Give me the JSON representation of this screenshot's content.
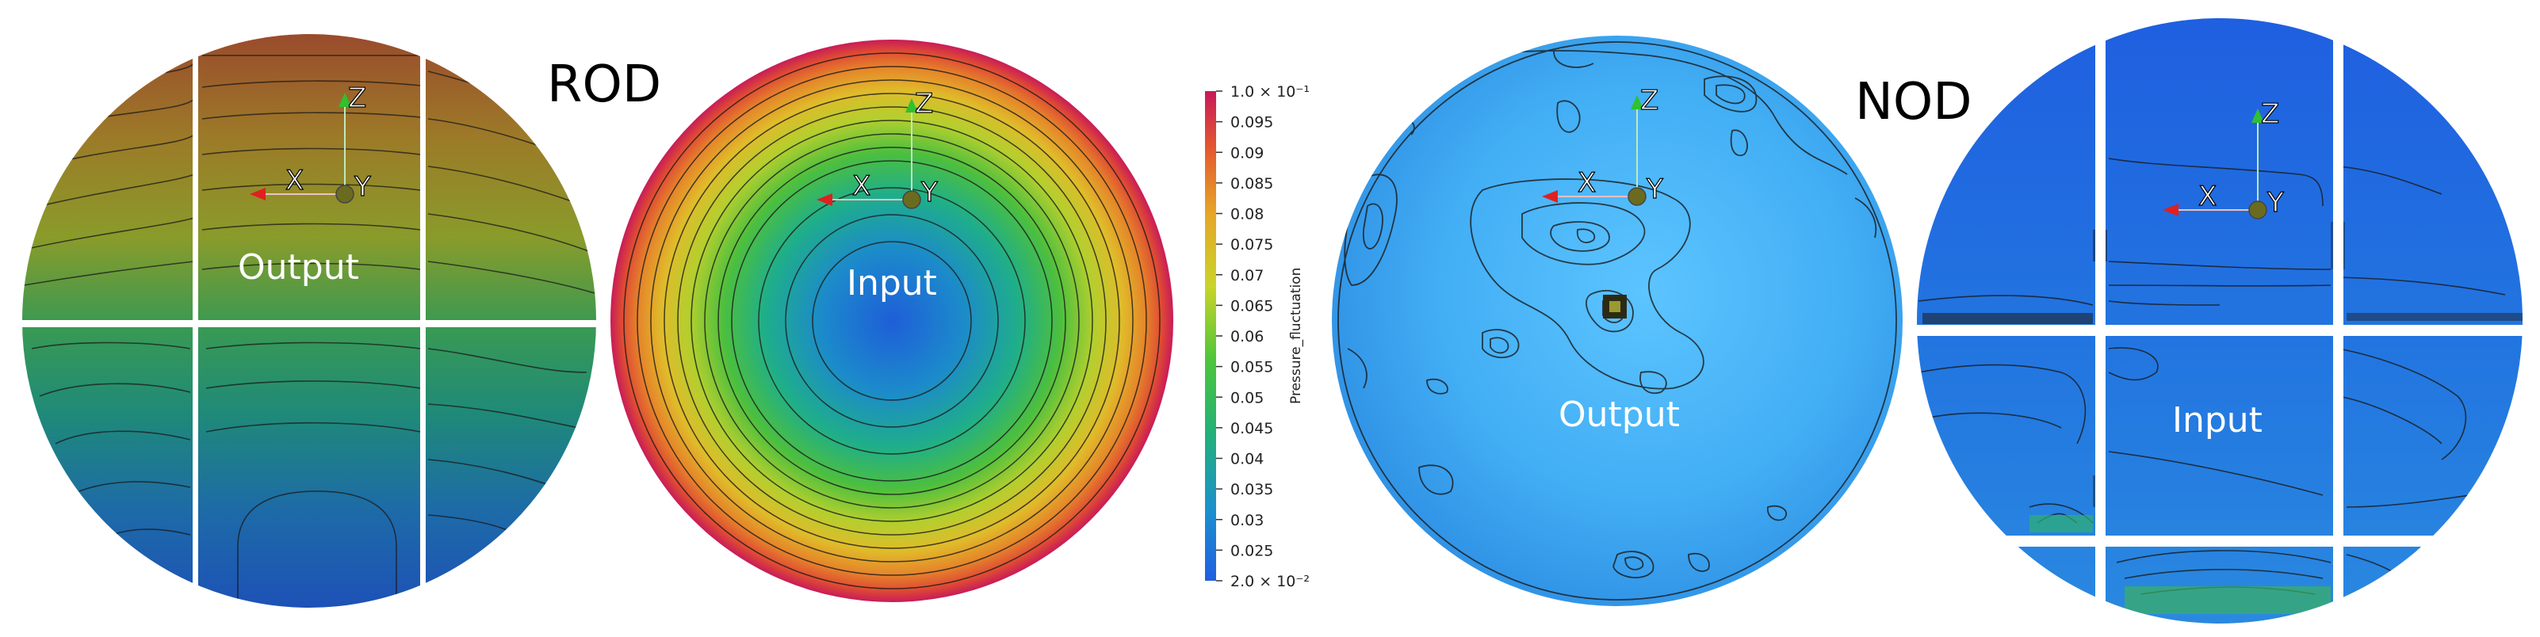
{
  "rod": {
    "title": "ROD",
    "output_label": "Output",
    "input_label": "Input"
  },
  "nod": {
    "title": "NOD",
    "output_label": "Output",
    "input_label": "Input"
  },
  "axes": {
    "x": "X",
    "y": "Y",
    "z": "Z"
  },
  "colorbar": {
    "title": "Pressure_fluctuation",
    "min": 0.02,
    "max": 0.1,
    "top_label": "1.0 × 10⁻¹",
    "bottom_label": "2.0 × 10⁻²",
    "ticks": [
      "0.095",
      "0.09",
      "0.085",
      "0.08",
      "0.075",
      "0.07",
      "0.065",
      "0.06",
      "0.055",
      "0.05",
      "0.045",
      "0.04",
      "0.035",
      "0.03",
      "0.025"
    ],
    "tick_values": [
      0.095,
      0.09,
      0.085,
      0.08,
      0.075,
      0.07,
      0.065,
      0.06,
      0.055,
      0.05,
      0.045,
      0.04,
      0.035,
      0.03,
      0.025
    ],
    "colors": [
      "#1f5fe0",
      "#1b8fd0",
      "#22b07a",
      "#4cc63a",
      "#c9d42a",
      "#e6a627",
      "#e35a2e",
      "#c8195a"
    ]
  },
  "colors": {
    "grid_gap": "#ffffff",
    "contour": "#1a1a1a",
    "axis_x": "#e02020",
    "axis_y": "#6b6b20",
    "axis_z": "#30c030"
  }
}
